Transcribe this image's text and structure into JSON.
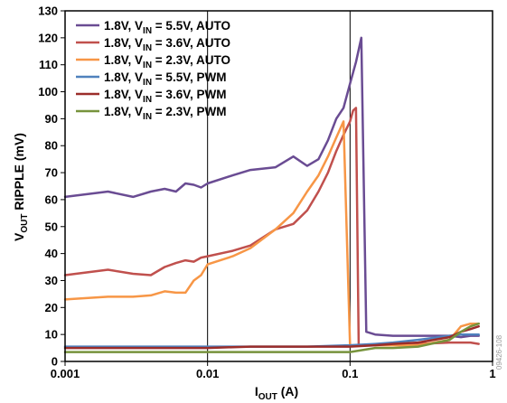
{
  "chart_data": {
    "type": "line",
    "xlabel": {
      "main": "I",
      "sub": "OUT",
      "tail": " (A)"
    },
    "ylabel": {
      "pre": "V",
      "sub": "OUT",
      "tail": " RIPPLE (mV)"
    },
    "x_scale": "log",
    "xlim": [
      0.001,
      1
    ],
    "ylim": [
      0,
      130
    ],
    "x_ticks": [
      {
        "value": 0.001,
        "label": "0.001"
      },
      {
        "value": 0.01,
        "label": "0.01"
      },
      {
        "value": 0.1,
        "label": "0.1"
      },
      {
        "value": 1,
        "label": "1"
      }
    ],
    "y_ticks": [
      0,
      10,
      20,
      30,
      40,
      50,
      60,
      70,
      80,
      90,
      100,
      110,
      120,
      130
    ],
    "grid": {
      "vertical_at_decades": true,
      "horizontal": false
    },
    "legend_position": "top-left",
    "figure_code": "09426-108",
    "series": [
      {
        "name": {
          "pre": "1.8V, V",
          "sub": "IN",
          "post": " = 5.5V, AUTO"
        },
        "color": "#6a4c93",
        "x": [
          0.001,
          0.002,
          0.003,
          0.004,
          0.005,
          0.006,
          0.007,
          0.008,
          0.009,
          0.01,
          0.015,
          0.02,
          0.03,
          0.04,
          0.05,
          0.06,
          0.07,
          0.08,
          0.09,
          0.1,
          0.11,
          0.12,
          0.13,
          0.15,
          0.2,
          0.3,
          0.5,
          0.6,
          0.7,
          0.8
        ],
        "y": [
          61,
          63,
          61,
          63,
          64,
          63,
          66,
          65.5,
          64.5,
          66,
          69,
          71,
          72,
          76,
          72.5,
          75,
          82,
          90,
          94,
          103,
          111,
          120,
          11,
          10,
          9.5,
          9.5,
          9.5,
          9,
          9.5,
          9.5
        ]
      },
      {
        "name": {
          "pre": "1.8V, V",
          "sub": "IN",
          "post": " = 3.6V, AUTO"
        },
        "color": "#c0504d",
        "x": [
          0.001,
          0.002,
          0.003,
          0.004,
          0.005,
          0.006,
          0.007,
          0.008,
          0.009,
          0.01,
          0.015,
          0.02,
          0.03,
          0.04,
          0.05,
          0.06,
          0.07,
          0.08,
          0.09,
          0.1,
          0.105,
          0.11,
          0.115,
          0.2,
          0.3,
          0.5,
          0.6,
          0.7,
          0.8
        ],
        "y": [
          32,
          34,
          32.5,
          32,
          35,
          36.5,
          37.5,
          37,
          38.5,
          39,
          41,
          43,
          49,
          51,
          56,
          63,
          70,
          78,
          84,
          89,
          93,
          94,
          6,
          6.5,
          6.5,
          7,
          7,
          7,
          6.5
        ]
      },
      {
        "name": {
          "pre": "1.8V, V",
          "sub": "IN",
          "post": " = 2.3V, AUTO"
        },
        "color": "#f79646",
        "x": [
          0.001,
          0.002,
          0.003,
          0.004,
          0.005,
          0.006,
          0.007,
          0.008,
          0.009,
          0.01,
          0.015,
          0.02,
          0.03,
          0.04,
          0.05,
          0.06,
          0.07,
          0.08,
          0.09,
          0.1,
          0.2,
          0.3,
          0.5,
          0.6,
          0.7,
          0.8
        ],
        "y": [
          23,
          24,
          24,
          24.5,
          26,
          25.5,
          25.5,
          30,
          32,
          36,
          39,
          42,
          49,
          55,
          63,
          69,
          76,
          83,
          89,
          6,
          6,
          6,
          8,
          13,
          14,
          14
        ]
      },
      {
        "name": {
          "pre": "1.8V, V",
          "sub": "IN",
          "post": " = 5.5V, PWM"
        },
        "color": "#4f81bd",
        "x": [
          0.001,
          0.002,
          0.005,
          0.01,
          0.02,
          0.05,
          0.1,
          0.15,
          0.2,
          0.3,
          0.5,
          0.6,
          0.7,
          0.8
        ],
        "y": [
          5.5,
          5.5,
          5.5,
          5.5,
          5.5,
          5.5,
          6,
          6.5,
          7,
          8,
          9.5,
          10,
          10,
          10
        ]
      },
      {
        "name": {
          "pre": "1.8V, V",
          "sub": "IN",
          "post": " = 3.6V, PWM"
        },
        "color": "#9b2d2a",
        "x": [
          0.001,
          0.002,
          0.005,
          0.01,
          0.02,
          0.05,
          0.1,
          0.15,
          0.2,
          0.3,
          0.5,
          0.6,
          0.7,
          0.8
        ],
        "y": [
          5,
          5,
          5,
          5,
          5.5,
          5.5,
          5.5,
          6,
          6.5,
          7,
          9,
          11,
          12,
          13
        ]
      },
      {
        "name": {
          "pre": "1.8V, V",
          "sub": "IN",
          "post": " = 2.3V, PWM"
        },
        "color": "#77933c",
        "x": [
          0.001,
          0.002,
          0.005,
          0.01,
          0.02,
          0.05,
          0.1,
          0.15,
          0.2,
          0.3,
          0.5,
          0.6,
          0.7,
          0.8
        ],
        "y": [
          3.5,
          3.5,
          3.5,
          3.5,
          3.5,
          3.5,
          3.5,
          5,
          5,
          5.5,
          8,
          11,
          13,
          14
        ]
      }
    ]
  }
}
